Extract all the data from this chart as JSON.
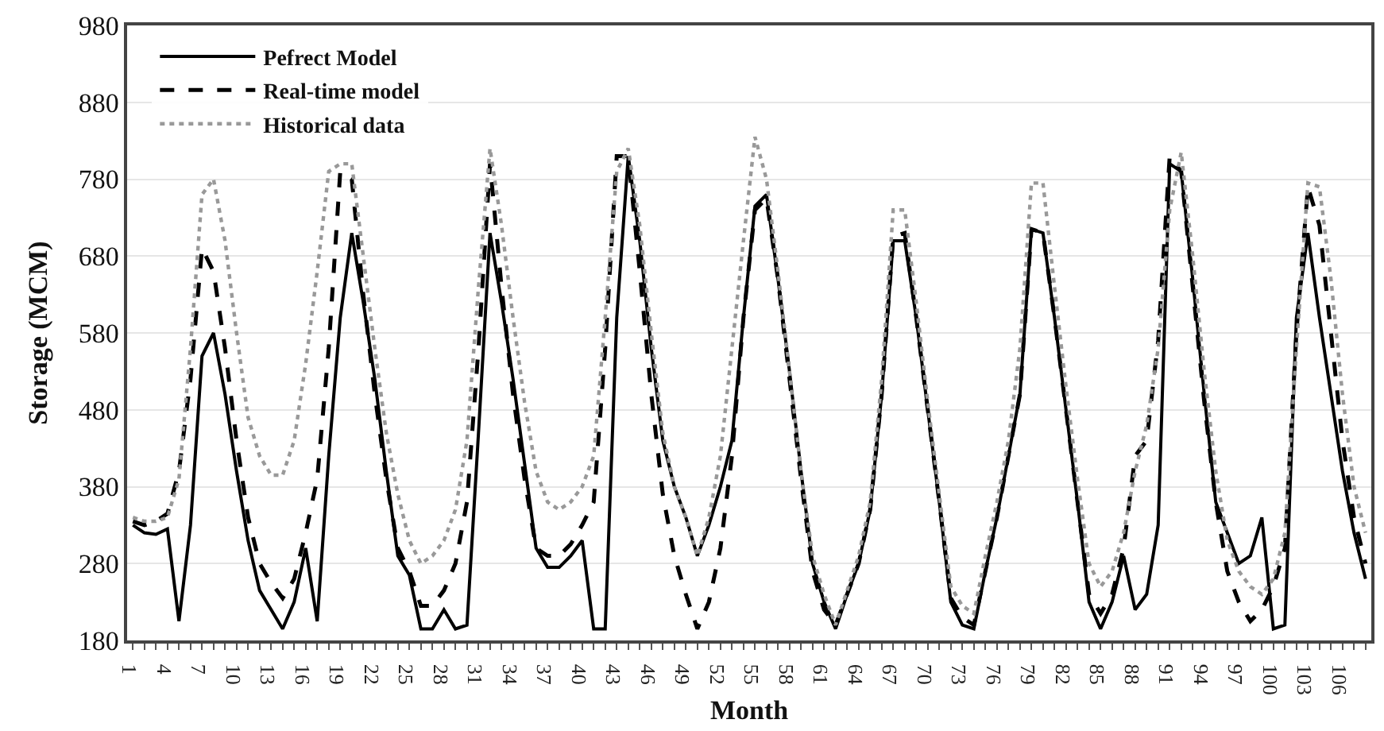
{
  "chart_data": {
    "type": "line",
    "xlabel": "Month",
    "ylabel": "Storage (MCM)",
    "x": [
      1,
      2,
      3,
      4,
      5,
      6,
      7,
      8,
      9,
      10,
      11,
      12,
      13,
      14,
      15,
      16,
      17,
      18,
      19,
      20,
      21,
      22,
      23,
      24,
      25,
      26,
      27,
      28,
      29,
      30,
      31,
      32,
      33,
      34,
      35,
      36,
      37,
      38,
      39,
      40,
      41,
      42,
      43,
      44,
      45,
      46,
      47,
      48,
      49,
      50,
      51,
      52,
      53,
      54,
      55,
      56,
      57,
      58,
      59,
      60,
      61,
      62,
      63,
      64,
      65,
      66,
      67,
      68,
      69,
      70,
      71,
      72,
      73,
      74,
      75,
      76,
      77,
      78,
      79,
      80,
      81,
      82,
      83,
      84,
      85,
      86,
      87,
      88,
      89,
      90,
      91,
      92,
      93,
      94,
      95,
      96,
      97,
      98,
      99,
      100,
      101,
      102,
      103,
      104,
      105,
      106,
      107,
      108
    ],
    "series": [
      {
        "name": "Pefrect Model",
        "color": "#000000",
        "line_style": "solid",
        "values": [
          330,
          320,
          318,
          325,
          205,
          330,
          550,
          580,
          500,
          400,
          310,
          245,
          220,
          195,
          230,
          300,
          205,
          420,
          600,
          710,
          620,
          520,
          400,
          290,
          265,
          195,
          195,
          220,
          195,
          200,
          450,
          710,
          620,
          520,
          410,
          300,
          275,
          275,
          290,
          310,
          195,
          195,
          600,
          810,
          700,
          560,
          440,
          380,
          340,
          290,
          330,
          380,
          440,
          600,
          745,
          760,
          650,
          530,
          400,
          280,
          230,
          195,
          240,
          280,
          350,
          500,
          700,
          700,
          600,
          480,
          360,
          230,
          200,
          195,
          270,
          340,
          420,
          500,
          715,
          710,
          600,
          480,
          360,
          230,
          195,
          230,
          290,
          220,
          240,
          330,
          800,
          790,
          650,
          500,
          360,
          320,
          280,
          290,
          340,
          195,
          200,
          600,
          710,
          600,
          500,
          400,
          320,
          260
        ]
      },
      {
        "name": "Real-time model",
        "color": "#000000",
        "line_style": "dashed",
        "values": [
          335,
          330,
          335,
          345,
          400,
          520,
          690,
          660,
          560,
          440,
          340,
          280,
          255,
          235,
          260,
          320,
          390,
          560,
          790,
          780,
          630,
          500,
          390,
          300,
          270,
          225,
          225,
          245,
          280,
          360,
          560,
          800,
          640,
          500,
          390,
          300,
          290,
          290,
          305,
          330,
          360,
          560,
          810,
          810,
          660,
          500,
          370,
          290,
          240,
          195,
          230,
          300,
          420,
          600,
          740,
          755,
          650,
          520,
          390,
          270,
          220,
          200,
          240,
          280,
          350,
          500,
          705,
          710,
          600,
          480,
          360,
          235,
          210,
          200,
          270,
          340,
          420,
          500,
          715,
          710,
          600,
          480,
          360,
          240,
          215,
          240,
          300,
          420,
          440,
          570,
          810,
          790,
          640,
          490,
          360,
          270,
          230,
          205,
          220,
          250,
          300,
          580,
          770,
          720,
          580,
          440,
          340,
          280
        ]
      },
      {
        "name": "Historical data",
        "color": "#999999",
        "line_style": "dotted",
        "values": [
          340,
          335,
          335,
          340,
          390,
          560,
          760,
          780,
          700,
          580,
          470,
          420,
          395,
          395,
          440,
          540,
          660,
          790,
          800,
          800,
          680,
          560,
          450,
          370,
          310,
          280,
          290,
          310,
          350,
          440,
          640,
          820,
          720,
          600,
          490,
          400,
          360,
          350,
          360,
          380,
          420,
          600,
          790,
          820,
          720,
          580,
          450,
          380,
          340,
          290,
          340,
          420,
          560,
          700,
          835,
          780,
          660,
          530,
          400,
          290,
          240,
          200,
          245,
          290,
          360,
          520,
          740,
          740,
          620,
          490,
          370,
          250,
          225,
          215,
          290,
          360,
          440,
          560,
          775,
          775,
          640,
          510,
          390,
          280,
          250,
          270,
          320,
          400,
          460,
          560,
          740,
          815,
          680,
          530,
          400,
          310,
          270,
          250,
          240,
          260,
          320,
          560,
          775,
          770,
          650,
          500,
          380,
          320
        ]
      }
    ],
    "xlim": [
      0.5,
      108.5
    ],
    "xticks": [
      1,
      {
        "value": 2,
        "label": null
      },
      {
        "value": 3,
        "label": null
      },
      4,
      {
        "value": 5,
        "label": null
      },
      {
        "value": 6,
        "label": null
      },
      7,
      {
        "value": 8,
        "label": null
      },
      {
        "value": 9,
        "label": null
      },
      10,
      {
        "value": 11,
        "label": null
      },
      {
        "value": 12,
        "label": null
      },
      13,
      {
        "value": 14,
        "label": null
      },
      {
        "value": 15,
        "label": null
      },
      16,
      {
        "value": 17,
        "label": null
      },
      {
        "value": 18,
        "label": null
      },
      19,
      {
        "value": 20,
        "label": null
      },
      {
        "value": 21,
        "label": null
      },
      22,
      {
        "value": 23,
        "label": null
      },
      {
        "value": 24,
        "label": null
      },
      25,
      {
        "value": 26,
        "label": null
      },
      {
        "value": 27,
        "label": null
      },
      28,
      {
        "value": 29,
        "label": null
      },
      {
        "value": 30,
        "label": null
      },
      31,
      {
        "value": 32,
        "label": null
      },
      {
        "value": 33,
        "label": null
      },
      34,
      {
        "value": 35,
        "label": null
      },
      {
        "value": 36,
        "label": null
      },
      37,
      {
        "value": 38,
        "label": null
      },
      {
        "value": 39,
        "label": null
      },
      40,
      {
        "value": 41,
        "label": null
      },
      {
        "value": 42,
        "label": null
      },
      43,
      {
        "value": 44,
        "label": null
      },
      {
        "value": 45,
        "label": null
      },
      46,
      {
        "value": 47,
        "label": null
      },
      {
        "value": 48,
        "label": null
      },
      49,
      {
        "value": 50,
        "label": null
      },
      {
        "value": 51,
        "label": null
      },
      52,
      {
        "value": 53,
        "label": null
      },
      {
        "value": 54,
        "label": null
      },
      55,
      {
        "value": 56,
        "label": null
      },
      {
        "value": 57,
        "label": null
      },
      58,
      {
        "value": 59,
        "label": null
      },
      {
        "value": 60,
        "label": null
      },
      61,
      {
        "value": 62,
        "label": null
      },
      {
        "value": 63,
        "label": null
      },
      64,
      {
        "value": 65,
        "label": null
      },
      {
        "value": 66,
        "label": null
      },
      67,
      {
        "value": 68,
        "label": null
      },
      {
        "value": 69,
        "label": null
      },
      70,
      {
        "value": 71,
        "label": null
      },
      {
        "value": 72,
        "label": null
      },
      73,
      {
        "value": 74,
        "label": null
      },
      {
        "value": 75,
        "label": null
      },
      76,
      {
        "value": 77,
        "label": null
      },
      {
        "value": 78,
        "label": null
      },
      79,
      {
        "value": 80,
        "label": null
      },
      {
        "value": 81,
        "label": null
      },
      82,
      {
        "value": 83,
        "label": null
      },
      {
        "value": 84,
        "label": null
      },
      85,
      {
        "value": 86,
        "label": null
      },
      {
        "value": 87,
        "label": null
      },
      88,
      {
        "value": 89,
        "label": null
      },
      {
        "value": 90,
        "label": null
      },
      91,
      {
        "value": 92,
        "label": null
      },
      {
        "value": 93,
        "label": null
      },
      94,
      {
        "value": 95,
        "label": null
      },
      {
        "value": 96,
        "label": null
      },
      97,
      {
        "value": 98,
        "label": null
      },
      {
        "value": 99,
        "label": null
      },
      100,
      {
        "value": 101,
        "label": null
      },
      {
        "value": 102,
        "label": null
      },
      103,
      {
        "value": 104,
        "label": null
      },
      {
        "value": 105,
        "label": null
      },
      106,
      {
        "value": 107,
        "label": null
      },
      {
        "value": 108,
        "label": null
      }
    ],
    "ylim": [
      180,
      980
    ],
    "yticks": [
      180,
      280,
      380,
      480,
      580,
      680,
      780,
      880,
      980
    ],
    "grid": "y",
    "legend": "top left",
    "marker": "none"
  }
}
